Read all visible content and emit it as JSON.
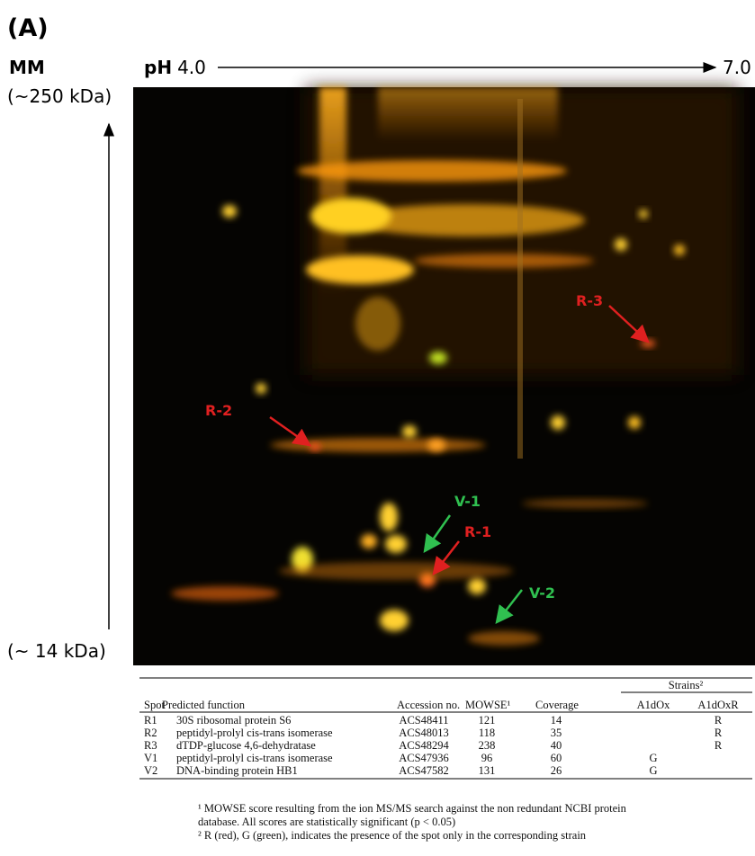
{
  "panel_label": "(A)",
  "axes": {
    "mm_label": "MM",
    "top_mass": "(~250 kDa)",
    "bottom_mass": "(~ 14 kDa)",
    "ph_label": "pH",
    "ph_start": "4.0",
    "ph_end": "7.0"
  },
  "gel": {
    "spot_labels": {
      "r1": "R-1",
      "r2": "R-2",
      "r3": "R-3",
      "v1": "V-1",
      "v2": "V-2"
    }
  },
  "table": {
    "strains_header": "Strains²",
    "columns": [
      "Spot",
      "Predicted function",
      "Accession no.",
      "MOWSE¹",
      "Coverage",
      "A1dOx",
      "A1dOxR"
    ],
    "rows": [
      {
        "spot": "R1",
        "function": "30S ribosomal protein S6",
        "accession": "ACS48411",
        "mowse": 121,
        "coverage": 14,
        "a1doxr": "R"
      },
      {
        "spot": "R2",
        "function": "peptidyl-prolyl cis-trans isomerase",
        "accession": "ACS48013",
        "mowse": 118,
        "coverage": 35,
        "a1doxr": "R"
      },
      {
        "spot": "R3",
        "function": "dTDP-glucose 4,6-dehydratase",
        "accession": "ACS48294",
        "mowse": 238,
        "coverage": 40,
        "a1doxr": "R"
      },
      {
        "spot": "V1",
        "function": "peptidyl-prolyl cis-trans isomerase",
        "accession": "ACS47936",
        "mowse": 96,
        "coverage": 60,
        "a1dox": "G"
      },
      {
        "spot": "V2",
        "function": "DNA-binding protein HB1",
        "accession": "ACS47582",
        "mowse": 131,
        "coverage": 26,
        "a1dox": "G"
      }
    ]
  },
  "footnotes": [
    "¹ MOWSE score resulting from the ion MS/MS search against the non redundant NCBI protein",
    "database. All scores are statistically significant (p < 0.05)",
    "² R (red), G (green), indicates the presence of the spot only in the corresponding strain"
  ]
}
